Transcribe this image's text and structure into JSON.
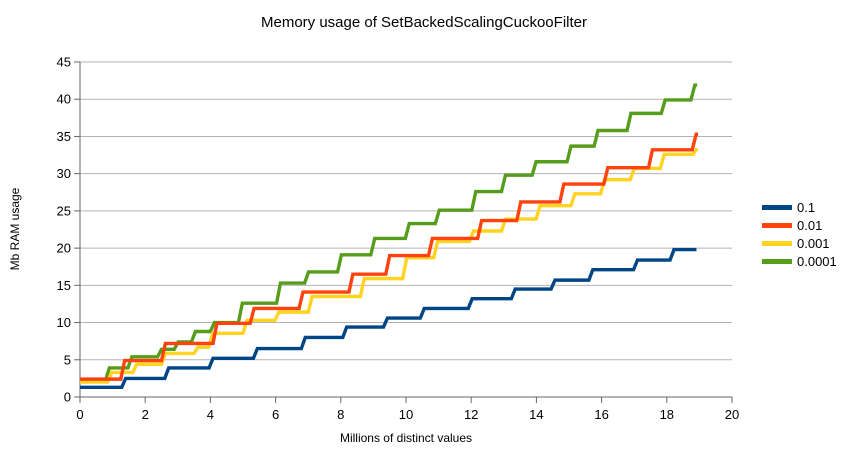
{
  "chart_data": {
    "type": "line",
    "title": "Memory usage of SetBackedScalingCuckooFilter",
    "xlabel": "Millions of distinct values",
    "ylabel": "Mb RAM usage",
    "xlim": [
      0,
      20
    ],
    "ylim": [
      0,
      45
    ],
    "xticks": [
      0,
      2,
      4,
      6,
      8,
      10,
      12,
      14,
      16,
      18,
      20
    ],
    "yticks": [
      0,
      5,
      10,
      15,
      20,
      25,
      30,
      35,
      40,
      45
    ],
    "grid": "horizontal-only",
    "grid_color": "#b3b3b3",
    "axis_color": "#666666",
    "legend_position": "right",
    "line_style": "stepped",
    "series": [
      {
        "name": "0.1",
        "color": "#004586",
        "end_x": 18.91,
        "steps": [
          [
            0,
            1.3
          ],
          [
            1.28,
            2.5
          ],
          [
            2.6,
            3.9
          ],
          [
            3.96,
            5.2
          ],
          [
            5.32,
            6.5
          ],
          [
            6.79,
            8.0
          ],
          [
            8.06,
            9.4
          ],
          [
            9.31,
            10.6
          ],
          [
            10.44,
            11.9
          ],
          [
            11.91,
            13.2
          ],
          [
            13.23,
            14.5
          ],
          [
            14.45,
            15.7
          ],
          [
            15.61,
            17.1
          ],
          [
            16.98,
            18.4
          ],
          [
            18.1,
            19.8
          ]
        ]
      },
      {
        "name": "0.01",
        "color": "#FF420E",
        "end_x": 18.96,
        "steps": [
          [
            0,
            2.4
          ],
          [
            1.25,
            4.9
          ],
          [
            2.5,
            7.2
          ],
          [
            4.08,
            9.9
          ],
          [
            5.22,
            11.9
          ],
          [
            6.72,
            14.1
          ],
          [
            8.25,
            16.5
          ],
          [
            9.38,
            19.0
          ],
          [
            10.69,
            21.3
          ],
          [
            12.2,
            23.7
          ],
          [
            13.4,
            26.2
          ],
          [
            14.72,
            28.6
          ],
          [
            16.07,
            30.8
          ],
          [
            17.44,
            33.2
          ],
          [
            18.78,
            35.3
          ]
        ]
      },
      {
        "name": "0.001",
        "color": "#FFD320",
        "end_x": 18.93,
        "steps": [
          [
            0,
            2.0
          ],
          [
            0.85,
            3.3
          ],
          [
            1.62,
            4.4
          ],
          [
            2.5,
            5.85
          ],
          [
            3.5,
            6.7
          ],
          [
            3.95,
            8.55
          ],
          [
            5.0,
            10.3
          ],
          [
            5.98,
            11.4
          ],
          [
            7.0,
            13.5
          ],
          [
            8.6,
            15.9
          ],
          [
            9.9,
            18.7
          ],
          [
            10.85,
            20.9
          ],
          [
            11.95,
            22.3
          ],
          [
            12.93,
            23.9
          ],
          [
            13.99,
            25.7
          ],
          [
            15.06,
            27.3
          ],
          [
            15.97,
            29.2
          ],
          [
            16.88,
            30.7
          ],
          [
            17.8,
            32.6
          ],
          [
            18.81,
            33.4
          ]
        ]
      },
      {
        "name": "0.0001",
        "color": "#579D1C",
        "end_x": 18.93,
        "steps": [
          [
            0,
            2.2
          ],
          [
            0.78,
            3.9
          ],
          [
            1.47,
            5.4
          ],
          [
            2.38,
            6.4
          ],
          [
            2.89,
            7.4
          ],
          [
            3.42,
            8.8
          ],
          [
            4.0,
            10.0
          ],
          [
            4.86,
            12.6
          ],
          [
            6.03,
            15.3
          ],
          [
            6.89,
            16.8
          ],
          [
            7.9,
            19.1
          ],
          [
            8.92,
            21.3
          ],
          [
            9.98,
            23.3
          ],
          [
            10.9,
            25.1
          ],
          [
            12.02,
            27.6
          ],
          [
            12.93,
            29.8
          ],
          [
            13.87,
            31.6
          ],
          [
            14.94,
            33.7
          ],
          [
            15.77,
            35.8
          ],
          [
            16.78,
            38.1
          ],
          [
            17.83,
            39.9
          ],
          [
            18.74,
            41.9
          ]
        ]
      }
    ]
  }
}
